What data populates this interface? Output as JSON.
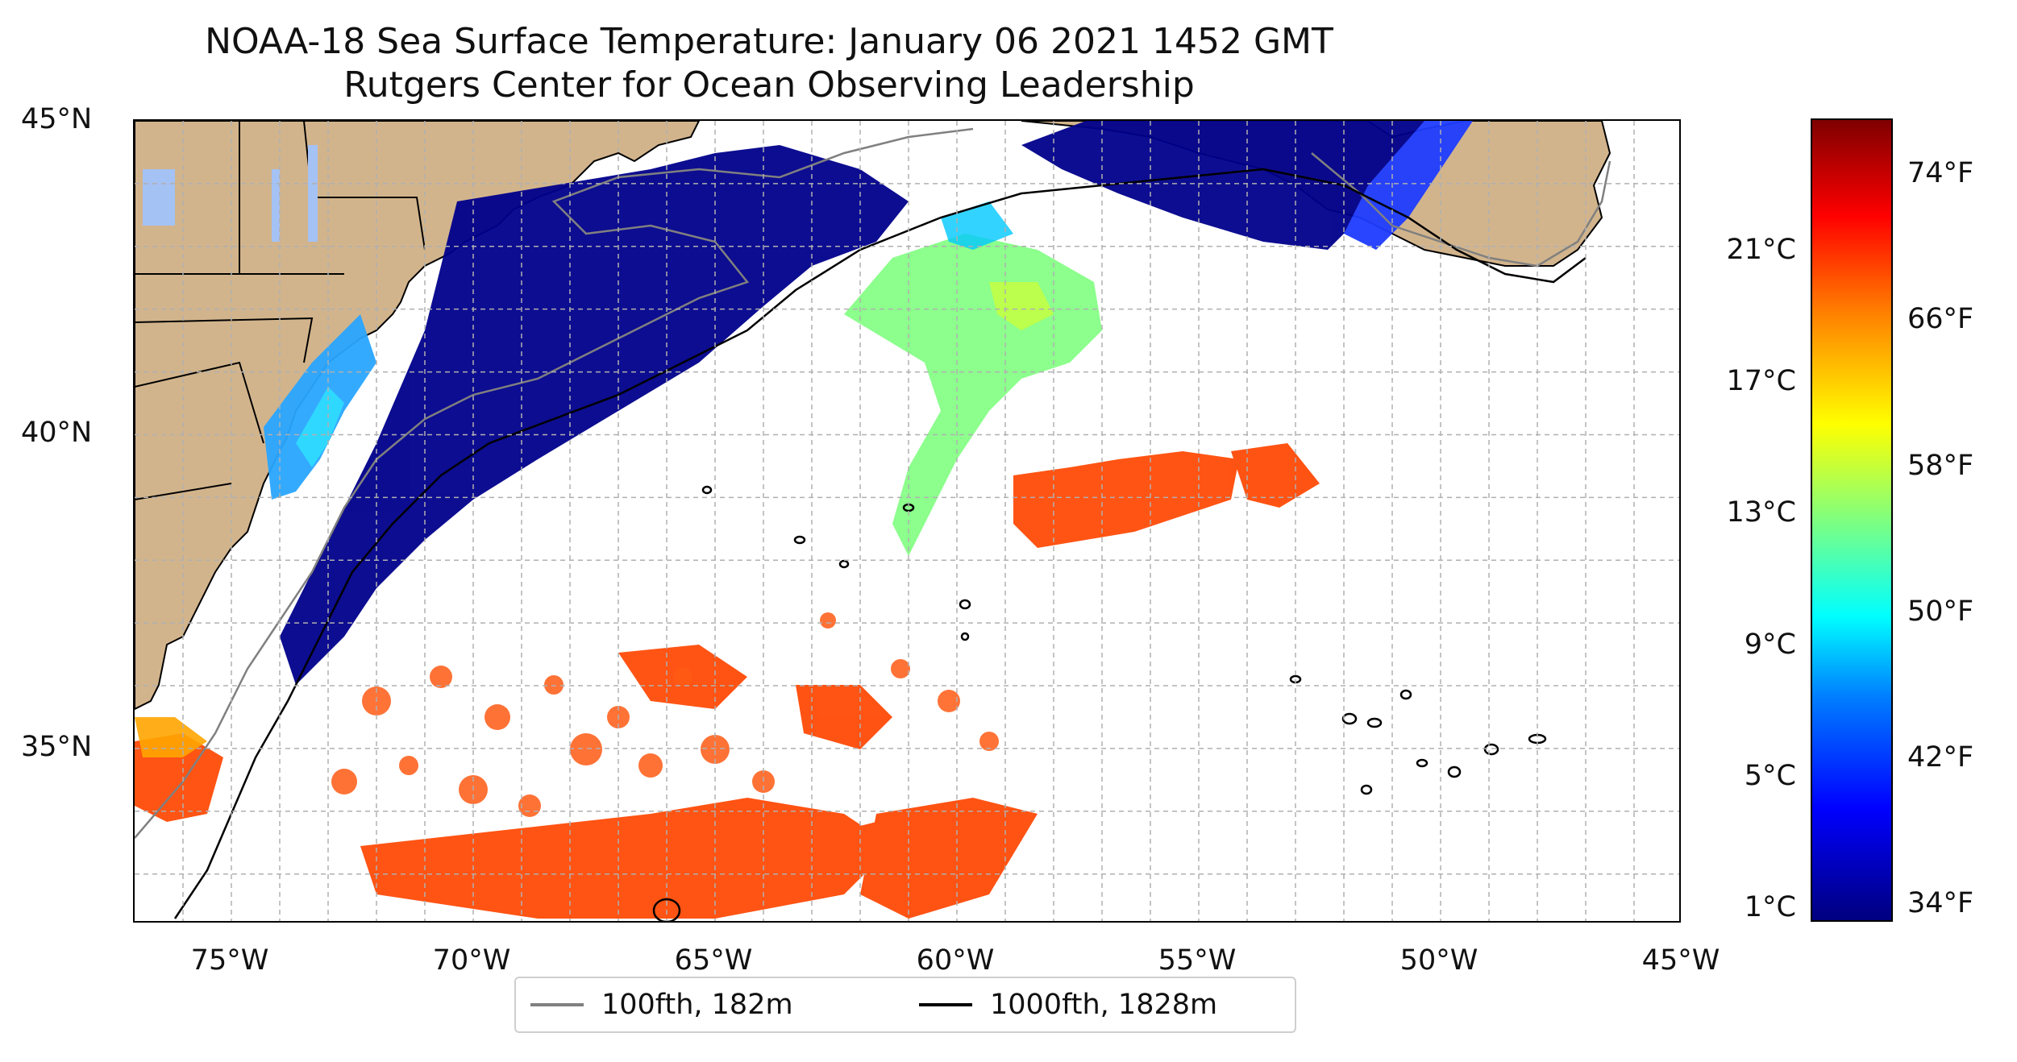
{
  "title_line1": "NOAA-18 Sea Surface Temperature: January 06 2021 1452 GMT",
  "title_line2": "Rutgers Center for Ocean Observing Leadership",
  "map": {
    "longitude_ticks": [
      "75°W",
      "70°W",
      "65°W",
      "60°W",
      "55°W",
      "50°W",
      "45°W"
    ],
    "latitude_ticks": [
      "45°N",
      "40°N",
      "35°N"
    ],
    "extent": {
      "lon_min": -77,
      "lon_max": -45,
      "lat_min": 32.2,
      "lat_max": 45
    },
    "land_color": "#d2b48c",
    "lake_color": "#a4c2f4",
    "grid": "dashed gray, on"
  },
  "colorbar": {
    "celsius_ticks": [
      "21°C",
      "17°C",
      "13°C",
      "9°C",
      "5°C",
      "1°C"
    ],
    "fahrenheit_ticks": [
      "74°F",
      "66°F",
      "58°F",
      "50°F",
      "42°F",
      "34°F"
    ],
    "colormap": "jet",
    "range_fahrenheit": [
      33,
      77
    ]
  },
  "legend": {
    "items": [
      {
        "label": "100fth, 182m",
        "color": "#808080"
      },
      {
        "label": "1000fth, 1828m",
        "color": "#000000"
      }
    ]
  }
}
